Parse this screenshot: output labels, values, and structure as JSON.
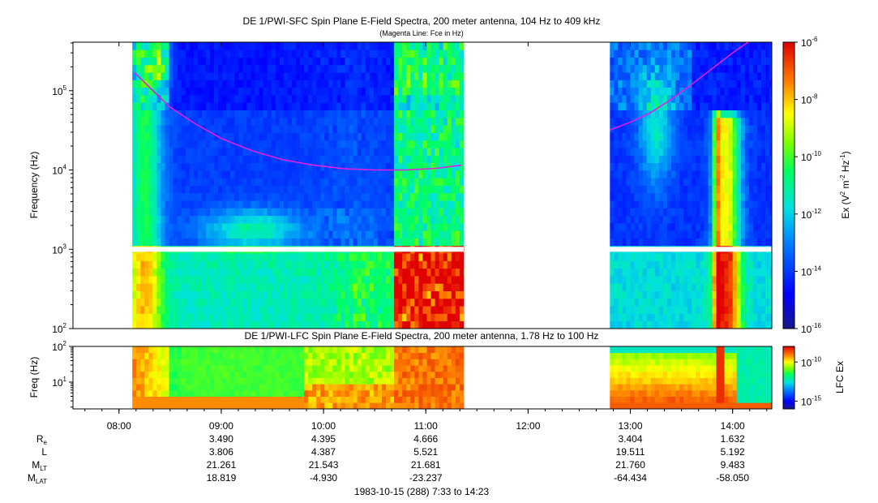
{
  "chart_data": [
    {
      "type": "heatmap",
      "title": "DE 1/PWI-SFC  Spin Plane E-Field Spectra, 200 meter antenna, 104 Hz to 409 kHz",
      "subtitle": "(Magenta Line: Fce in Hz)",
      "xlabel": "",
      "ylabel": "Frequency (Hz)",
      "y_scale": "log",
      "ylim": [
        100,
        409000
      ],
      "y_ticks": [
        {
          "value": 100,
          "base": "10",
          "exp": "2"
        },
        {
          "value": 1000,
          "base": "10",
          "exp": "3"
        },
        {
          "value": 10000,
          "base": "10",
          "exp": "4"
        },
        {
          "value": 100000,
          "base": "10",
          "exp": "5"
        }
      ],
      "colorbar": {
        "label_main": "Ex (V",
        "label_sup1": "2",
        "label_mid1": " m",
        "label_sup2": "-2",
        "label_mid2": " Hz",
        "label_sup3": "-1",
        "label_end": ")",
        "scale": "log",
        "range": [
          1e-16,
          1e-06
        ],
        "ticks": [
          {
            "value": 1e-06,
            "base": "10",
            "exp": "-6"
          },
          {
            "value": 1e-08,
            "base": "10",
            "exp": "-8"
          },
          {
            "value": 1e-10,
            "base": "10",
            "exp": "-10"
          },
          {
            "value": 1e-12,
            "base": "10",
            "exp": "-12"
          },
          {
            "value": 1e-14,
            "base": "10",
            "exp": "-14"
          },
          {
            "value": 1e-16,
            "base": "10",
            "exp": "-16"
          }
        ]
      },
      "data_intervals_hours": [
        [
          8.13,
          11.37
        ],
        [
          12.8,
          14.38
        ]
      ],
      "series": [
        {
          "name": "Fce",
          "color": "#e020e0",
          "segments": [
            [
              [
                8.15,
                170000
              ],
              [
                8.3,
                110000
              ],
              [
                8.5,
                62000
              ],
              [
                8.75,
                38000
              ],
              [
                9.0,
                25000
              ],
              [
                9.3,
                17500
              ],
              [
                9.6,
                13500
              ],
              [
                9.9,
                11500
              ],
              [
                10.2,
                10400
              ],
              [
                10.5,
                10000
              ],
              [
                10.8,
                10000
              ],
              [
                11.1,
                10500
              ],
              [
                11.35,
                11500
              ]
            ],
            [
              [
                12.8,
                32000
              ],
              [
                13.0,
                40000
              ],
              [
                13.2,
                53000
              ],
              [
                13.4,
                78000
              ],
              [
                13.6,
                120000
              ],
              [
                13.8,
                190000
              ],
              [
                14.0,
                300000
              ],
              [
                14.15,
                409000
              ]
            ]
          ]
        }
      ]
    },
    {
      "type": "heatmap",
      "title": "DE 1/PWI-LFC  Spin Plane E-Field Spectra, 200 meter antenna, 1.78 Hz to 100 Hz",
      "ylabel": "Freq (Hz)",
      "y_scale": "log",
      "ylim": [
        1.78,
        100
      ],
      "y_ticks": [
        {
          "value": 10,
          "base": "10",
          "exp": "1"
        },
        {
          "value": 100,
          "base": "10",
          "exp": "2"
        }
      ],
      "colorbar": {
        "label": "LFC Ex",
        "scale": "log",
        "range": [
          1e-16,
          1e-08
        ],
        "ticks": [
          {
            "value": 1e-10,
            "base": "10",
            "exp": "-10"
          },
          {
            "value": 1e-15,
            "base": "10",
            "exp": "-15"
          }
        ]
      },
      "data_intervals_hours": [
        [
          8.13,
          11.37
        ],
        [
          12.8,
          14.38
        ]
      ]
    }
  ],
  "x_axis": {
    "range_hours": [
      7.55,
      14.383
    ],
    "ticks": [
      {
        "hour": 8,
        "label": "08:00"
      },
      {
        "hour": 9,
        "label": "09:00"
      },
      {
        "hour": 10,
        "label": "10:00"
      },
      {
        "hour": 11,
        "label": "11:00"
      },
      {
        "hour": 12,
        "label": "12:00"
      },
      {
        "hour": 13,
        "label": "13:00"
      },
      {
        "hour": 14,
        "label": "14:00"
      }
    ]
  },
  "ephemeris": {
    "rows": [
      {
        "main": "R",
        "sub": "e",
        "values": [
          "3.490",
          "4.395",
          "4.666",
          "",
          "3.404",
          "1.632"
        ]
      },
      {
        "main": "L",
        "sub": "",
        "values": [
          "3.806",
          "4.387",
          "5.521",
          "",
          "19.511",
          "5.192"
        ]
      },
      {
        "main": "M",
        "sub": "LT",
        "values": [
          "21.261",
          "21.543",
          "21.681",
          "",
          "21.760",
          "9.483"
        ]
      },
      {
        "main": "M",
        "sub": "LAT",
        "values": [
          "18.819",
          "-4.930",
          "-23.237",
          "",
          "-64.434",
          "-58.050"
        ]
      }
    ],
    "columns_hours": [
      9,
      10,
      11,
      12,
      13,
      14
    ]
  },
  "footer": "1983-10-15 (288) 7:33 to 14:23"
}
